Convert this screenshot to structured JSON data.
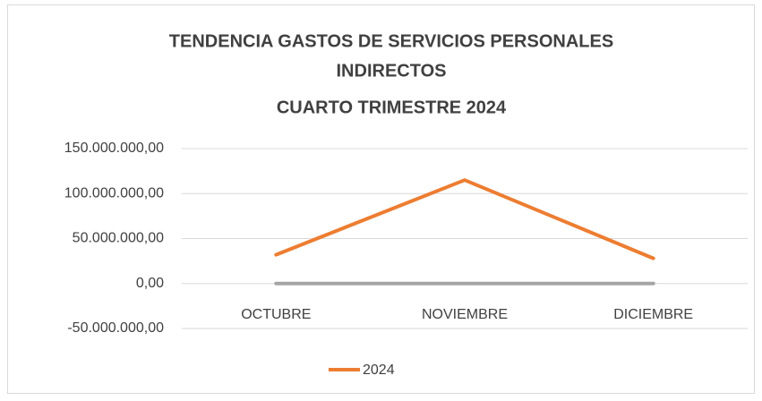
{
  "chart_data": {
    "type": "line",
    "title": [
      "TENDENCIA GASTOS DE SERVICIOS PERSONALES",
      "INDIRECTOS",
      "CUARTO TRIMESTRE 2024"
    ],
    "categories": [
      "OCTUBRE",
      "NOVIEMBRE",
      "DICIEMBRE"
    ],
    "series": [
      {
        "name": "2024",
        "color": "#ed7d31",
        "values": [
          32000000,
          115000000,
          28000000
        ]
      },
      {
        "color": "#a5a5a5",
        "values": [
          0,
          0,
          0
        ]
      }
    ],
    "ylim": [
      -50000000,
      150000000
    ],
    "yticks": [
      {
        "value": -50000000,
        "label": "-50.000.000,00"
      },
      {
        "value": 0,
        "label": "0,00"
      },
      {
        "value": 50000000,
        "label": "50.000.000,00"
      },
      {
        "value": 100000000,
        "label": "100.000.000,00"
      },
      {
        "value": 150000000,
        "label": "150.000.000,00"
      }
    ],
    "grid": true,
    "legend": "bottom"
  }
}
